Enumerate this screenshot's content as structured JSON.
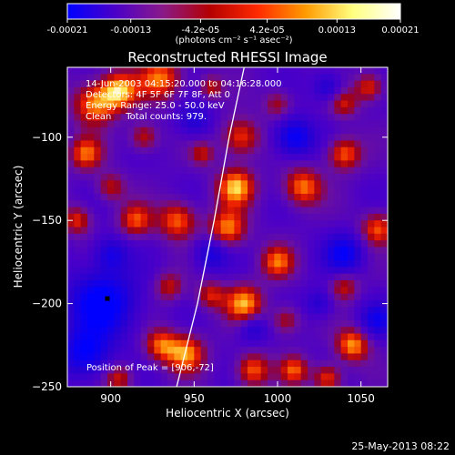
{
  "colorbar": {
    "tick_labels": [
      "-0.00021",
      "-0.00013",
      "-4.2e-05",
      "4.2e-05",
      "0.00013",
      "0.00021"
    ],
    "tick_values": [
      -0.00021,
      -0.00013,
      -4.2e-05,
      4.2e-05,
      0.00013,
      0.00021
    ],
    "range": [
      -0.00021,
      0.00021
    ],
    "unit_label": "(photons cm⁻² s⁻¹ asec⁻²)",
    "colors": [
      "#0000ff",
      "#4b00c8",
      "#8a1a8a",
      "#b40000",
      "#ff2a00",
      "#ff9a00",
      "#ffff80",
      "#ffffff"
    ]
  },
  "overlay": {
    "line1": "14-Jun-2003 04:15:20.000 to 04:16:28.000",
    "line2": "Detectors: 4F 5F 6F 7F 8F, Att 0",
    "line3": "Energy Range: 25.0 - 50.0 keV",
    "line4": "Clean     Total counts: 979.",
    "peak": "Position of Peak = [906,-72]"
  },
  "footer": {
    "timestamp": "25-May-2013 08:22"
  },
  "chart_data": {
    "type": "heatmap",
    "title": "Reconstructed RHESSI Image",
    "xlabel": "Heliocentric X (arcsec)",
    "ylabel": "Heliocentric Y (arcsec)",
    "xlim": [
      874,
      1066
    ],
    "ylim": [
      -250,
      -58
    ],
    "xticks": [
      900,
      950,
      1000,
      1050
    ],
    "xtick_labels": [
      "900",
      "950",
      "1000",
      "1050"
    ],
    "yticks": [
      -100,
      -150,
      -200,
      -250
    ],
    "ytick_labels": [
      "−100",
      "−150",
      "−200",
      "−250"
    ],
    "limb": [
      [
        939,
        -252
      ],
      [
        952,
        -200
      ],
      [
        962,
        -150
      ],
      [
        971,
        -100
      ],
      [
        980,
        -58
      ]
    ],
    "marker": [
      898,
      -197
    ],
    "sources": [
      {
        "x": 890,
        "y": -80,
        "v": 0.85,
        "s": 9
      },
      {
        "x": 905,
        "y": -72,
        "v": 0.95,
        "s": 8
      },
      {
        "x": 885,
        "y": -110,
        "v": 0.75,
        "s": 7
      },
      {
        "x": 930,
        "y": -65,
        "v": 0.8,
        "s": 9
      },
      {
        "x": 920,
        "y": -100,
        "v": 0.6,
        "s": 6
      },
      {
        "x": 940,
        "y": -150,
        "v": 0.8,
        "s": 8
      },
      {
        "x": 955,
        "y": -110,
        "v": 0.5,
        "s": 5
      },
      {
        "x": 915,
        "y": -150,
        "v": 0.7,
        "s": 7
      },
      {
        "x": 900,
        "y": -130,
        "v": 0.55,
        "s": 6
      },
      {
        "x": 880,
        "y": -150,
        "v": 0.65,
        "s": 6
      },
      {
        "x": 975,
        "y": -130,
        "v": 0.95,
        "s": 8
      },
      {
        "x": 978,
        "y": -100,
        "v": 0.75,
        "s": 8
      },
      {
        "x": 970,
        "y": -155,
        "v": 0.85,
        "s": 8
      },
      {
        "x": 980,
        "y": -200,
        "v": 0.9,
        "s": 8
      },
      {
        "x": 960,
        "y": -195,
        "v": 0.6,
        "s": 6
      },
      {
        "x": 985,
        "y": -240,
        "v": 0.8,
        "s": 7
      },
      {
        "x": 1000,
        "y": -175,
        "v": 0.75,
        "s": 7
      },
      {
        "x": 1005,
        "y": -210,
        "v": 0.55,
        "s": 6
      },
      {
        "x": 1010,
        "y": -240,
        "v": 0.7,
        "s": 6
      },
      {
        "x": 1015,
        "y": -130,
        "v": 0.85,
        "s": 8
      },
      {
        "x": 1040,
        "y": -110,
        "v": 0.8,
        "s": 7
      },
      {
        "x": 1040,
        "y": -80,
        "v": 0.55,
        "s": 6
      },
      {
        "x": 1055,
        "y": -70,
        "v": 0.7,
        "s": 6
      },
      {
        "x": 1060,
        "y": -155,
        "v": 0.75,
        "s": 7
      },
      {
        "x": 1040,
        "y": -190,
        "v": 0.55,
        "s": 6
      },
      {
        "x": 1045,
        "y": -225,
        "v": 0.9,
        "s": 7
      },
      {
        "x": 1030,
        "y": -245,
        "v": 0.75,
        "s": 6
      },
      {
        "x": 945,
        "y": -230,
        "v": 0.85,
        "s": 8
      },
      {
        "x": 930,
        "y": -225,
        "v": 0.75,
        "s": 7
      },
      {
        "x": 935,
        "y": -190,
        "v": 0.55,
        "s": 6
      },
      {
        "x": 905,
        "y": -245,
        "v": 0.6,
        "s": 6
      },
      {
        "x": 1000,
        "y": -80,
        "v": 0.5,
        "s": 6
      },
      {
        "x": 960,
        "y": -70,
        "v": 0.55,
        "s": 5
      },
      {
        "x": 895,
        "y": -200,
        "v": -0.95,
        "s": 14
      },
      {
        "x": 885,
        "y": -230,
        "v": -0.8,
        "s": 10
      },
      {
        "x": 1010,
        "y": -100,
        "v": -0.85,
        "s": 8
      },
      {
        "x": 960,
        "y": -170,
        "v": -0.6,
        "s": 7
      },
      {
        "x": 1040,
        "y": -170,
        "v": -0.75,
        "s": 8
      },
      {
        "x": 1060,
        "y": -210,
        "v": -0.6,
        "s": 7
      },
      {
        "x": 900,
        "y": -170,
        "v": -0.55,
        "s": 7
      },
      {
        "x": 985,
        "y": -215,
        "v": -0.5,
        "s": 6
      },
      {
        "x": 1030,
        "y": -70,
        "v": -0.55,
        "s": 6
      },
      {
        "x": 950,
        "y": -90,
        "v": -0.5,
        "s": 7
      },
      {
        "x": 1025,
        "y": -200,
        "v": -0.45,
        "s": 6
      }
    ]
  }
}
